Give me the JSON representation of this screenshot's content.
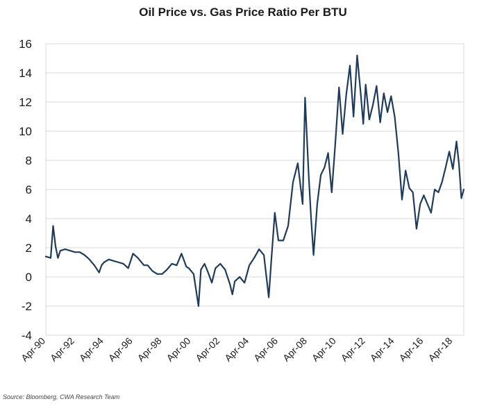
{
  "chart_data": {
    "type": "line",
    "title": "Oil Price vs. Gas Price Ratio Per BTU",
    "xlabel": "",
    "ylabel": "",
    "ylim": [
      -4,
      16
    ],
    "yticks": [
      16,
      14,
      12,
      10,
      8,
      6,
      4,
      2,
      0,
      -2,
      -4
    ],
    "xlim": [
      "1990-04",
      "2019-01"
    ],
    "xticks": [
      "Apr-90",
      "Apr-92",
      "Apr-94",
      "Apr-96",
      "Apr-98",
      "Apr-00",
      "Apr-02",
      "Apr-04",
      "Apr-06",
      "Apr-08",
      "Apr-10",
      "Apr-12",
      "Apr-14",
      "Apr-16",
      "Apr-18"
    ],
    "grid": true,
    "legend": "none",
    "line_color": "#1f3b5c",
    "series": [
      {
        "name": "",
        "x": [
          "1990-04",
          "1990-08",
          "1990-10",
          "1990-12",
          "1991-02",
          "1991-04",
          "1991-08",
          "1991-12",
          "1992-04",
          "1992-08",
          "1992-12",
          "1993-04",
          "1993-08",
          "1993-12",
          "1994-02",
          "1994-04",
          "1994-08",
          "1994-12",
          "1995-04",
          "1995-08",
          "1995-12",
          "1996-04",
          "1996-08",
          "1996-10",
          "1997-01",
          "1997-04",
          "1997-08",
          "1997-12",
          "1998-04",
          "1998-08",
          "1998-12",
          "1999-04",
          "1999-08",
          "1999-12",
          "2000-02",
          "2000-06",
          "2000-10",
          "2000-12",
          "2001-03",
          "2001-06",
          "2001-09",
          "2001-12",
          "2002-04",
          "2002-08",
          "2002-12",
          "2003-02",
          "2003-04",
          "2003-08",
          "2003-12",
          "2004-04",
          "2004-08",
          "2004-12",
          "2005-04",
          "2005-08",
          "2005-10",
          "2006-01",
          "2006-04",
          "2006-08",
          "2006-12",
          "2007-04",
          "2007-08",
          "2007-12",
          "2008-02",
          "2008-05",
          "2008-07",
          "2008-09",
          "2008-12",
          "2009-03",
          "2009-06",
          "2009-09",
          "2009-12",
          "2010-03",
          "2010-06",
          "2010-09",
          "2010-12",
          "2011-03",
          "2011-06",
          "2011-09",
          "2011-12",
          "2012-02",
          "2012-04",
          "2012-07",
          "2012-10",
          "2013-01",
          "2013-04",
          "2013-07",
          "2013-10",
          "2014-01",
          "2014-04",
          "2014-07",
          "2014-10",
          "2015-01",
          "2015-04",
          "2015-07",
          "2015-10",
          "2016-01",
          "2016-04",
          "2016-07",
          "2016-10",
          "2017-01",
          "2017-04",
          "2017-07",
          "2017-10",
          "2018-01",
          "2018-04",
          "2018-07",
          "2018-09",
          "2018-11",
          "2019-01"
        ],
        "values": [
          1.4,
          1.3,
          3.5,
          2.1,
          1.3,
          1.8,
          1.9,
          1.8,
          1.7,
          1.7,
          1.5,
          1.2,
          0.8,
          0.3,
          0.8,
          1.0,
          1.2,
          1.1,
          1.0,
          0.9,
          0.6,
          1.6,
          1.3,
          1.1,
          0.8,
          0.8,
          0.4,
          0.2,
          0.2,
          0.5,
          0.9,
          0.8,
          1.6,
          0.7,
          0.6,
          0.2,
          -2.0,
          0.5,
          0.9,
          0.3,
          -0.4,
          0.6,
          0.9,
          0.5,
          -0.5,
          -1.2,
          -0.3,
          0.0,
          -0.4,
          0.8,
          1.3,
          1.9,
          1.5,
          -1.4,
          1.0,
          4.4,
          2.5,
          2.5,
          3.5,
          6.5,
          7.8,
          5.0,
          12.3,
          7.0,
          4.0,
          1.5,
          5.0,
          7.0,
          7.5,
          8.5,
          5.8,
          9.2,
          13.0,
          9.8,
          12.5,
          14.5,
          11.0,
          15.2,
          12.5,
          10.5,
          13.2,
          10.8,
          11.8,
          13.1,
          10.6,
          12.6,
          11.3,
          12.4,
          11.0,
          8.5,
          5.3,
          7.3,
          6.1,
          5.8,
          3.3,
          5.0,
          5.6,
          5.0,
          4.4,
          6.0,
          5.8,
          6.5,
          7.5,
          8.6,
          7.4,
          9.3,
          7.8,
          5.4,
          6.0
        ]
      }
    ]
  },
  "source": "Source: Bloomberg, CWA Research Team"
}
